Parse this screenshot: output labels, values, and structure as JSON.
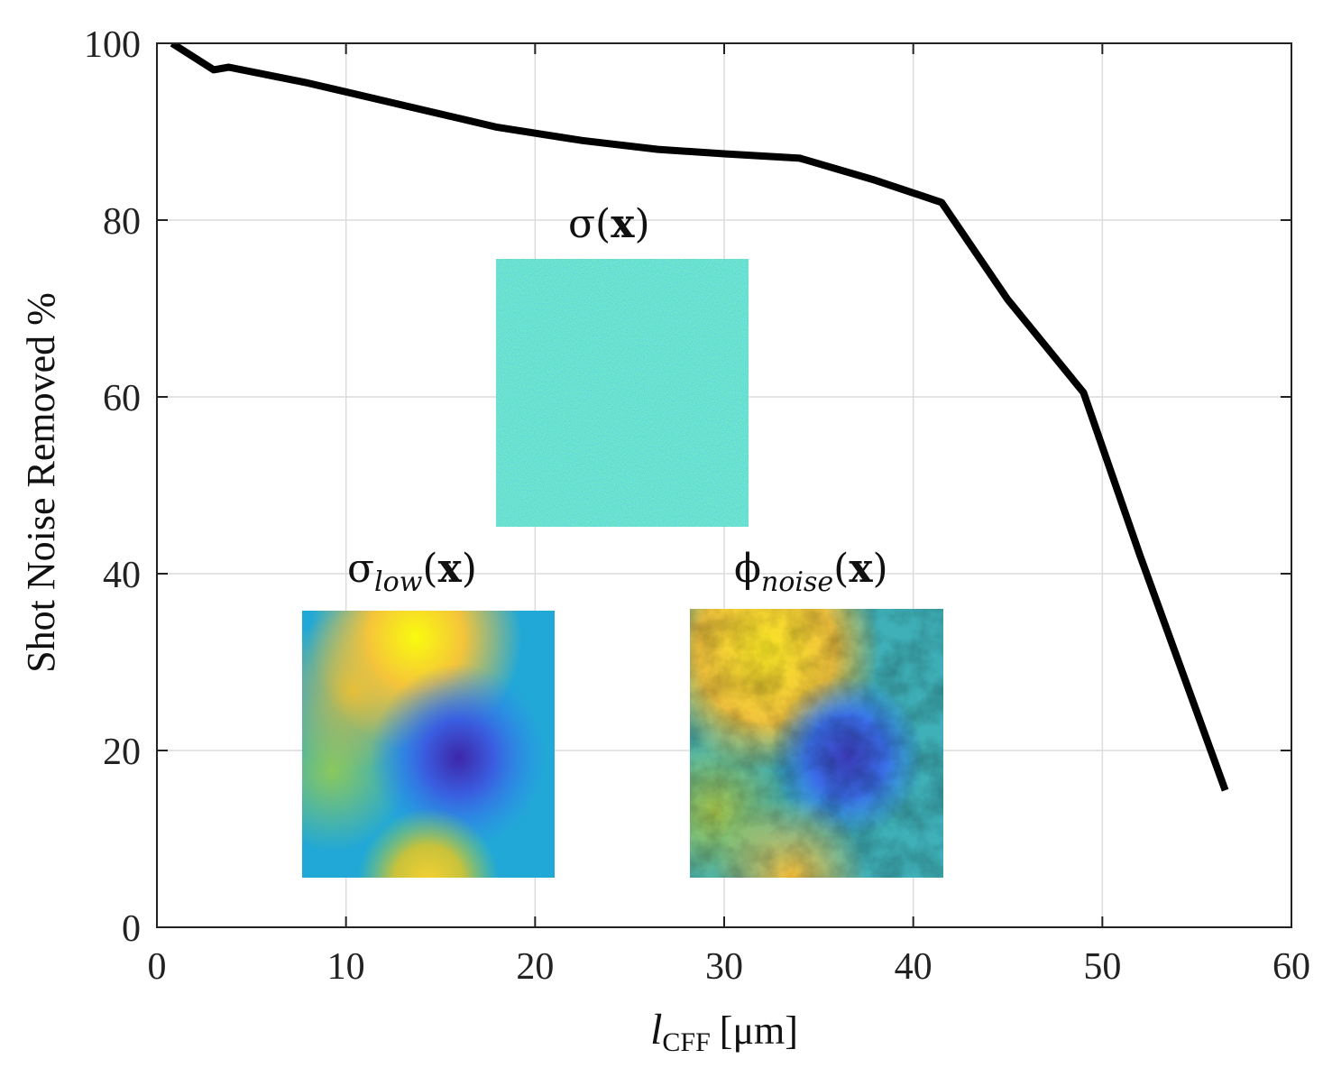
{
  "chart_data": {
    "type": "line",
    "title": "",
    "xlabel_main": "l",
    "xlabel_sub": "CFF",
    "xlabel_unit": "[μm]",
    "ylabel": "Shot Noise Removed %",
    "xlim": [
      0,
      60
    ],
    "ylim": [
      0,
      100
    ],
    "xticks": [
      0,
      10,
      20,
      30,
      40,
      50,
      60
    ],
    "yticks": [
      0,
      20,
      40,
      60,
      80,
      100
    ],
    "grid": true,
    "series": [
      {
        "name": "shot-noise-removed",
        "color": "#000000",
        "x": [
          0.8,
          3,
          3.8,
          8,
          13,
          18,
          22.5,
          26.5,
          30,
          34,
          38,
          41.5,
          45,
          49,
          52,
          56.5
        ],
        "y": [
          100,
          97,
          97.3,
          95.5,
          93,
          90.5,
          89,
          88,
          87.5,
          87,
          84.5,
          82,
          71,
          60.5,
          42,
          15.5
        ]
      }
    ],
    "insets": [
      {
        "name": "sigma",
        "title_main": "σ(",
        "title_sub": "",
        "title_var": "x",
        "title_end": ")"
      },
      {
        "name": "sigma-low",
        "title_main": "σ",
        "title_sub": "low",
        "title_var": "x",
        "title_end": ")"
      },
      {
        "name": "phi-noise",
        "title_main": "ϕ",
        "title_sub": "noise",
        "title_var": "x",
        "title_end": ")"
      }
    ]
  },
  "colors": {
    "parula_dark": "#3e26a8",
    "parula_blue": "#2e87f7",
    "parula_teal": "#1fb1c1",
    "parula_green": "#81cc59",
    "parula_yellow": "#f9fb0e",
    "parula_orange": "#fcba3d"
  }
}
